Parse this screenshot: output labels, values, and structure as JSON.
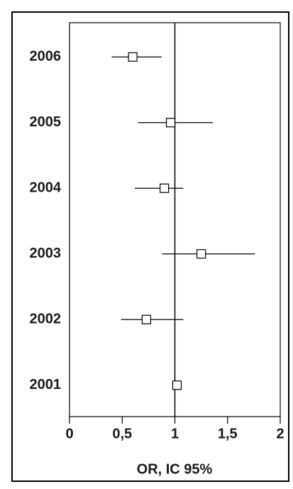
{
  "chart_data": {
    "type": "forest",
    "categories": [
      "2006",
      "2005",
      "2004",
      "2003",
      "2002",
      "2001"
    ],
    "values": [
      0.6,
      0.96,
      0.9,
      1.25,
      0.73,
      1.02
    ],
    "lower": [
      0.4,
      0.65,
      0.62,
      0.88,
      0.49,
      null
    ],
    "upper": [
      0.875,
      1.36,
      1.08,
      1.76,
      1.08,
      null
    ],
    "reference": 1,
    "xlabel": "OR, IC 95%",
    "xlim": [
      0,
      2
    ],
    "xticks": [
      0,
      {
        "value": 0.5,
        "label": "0,5"
      },
      1,
      {
        "value": 1.5,
        "label": "1,5"
      },
      2
    ],
    "color": "#000000"
  }
}
